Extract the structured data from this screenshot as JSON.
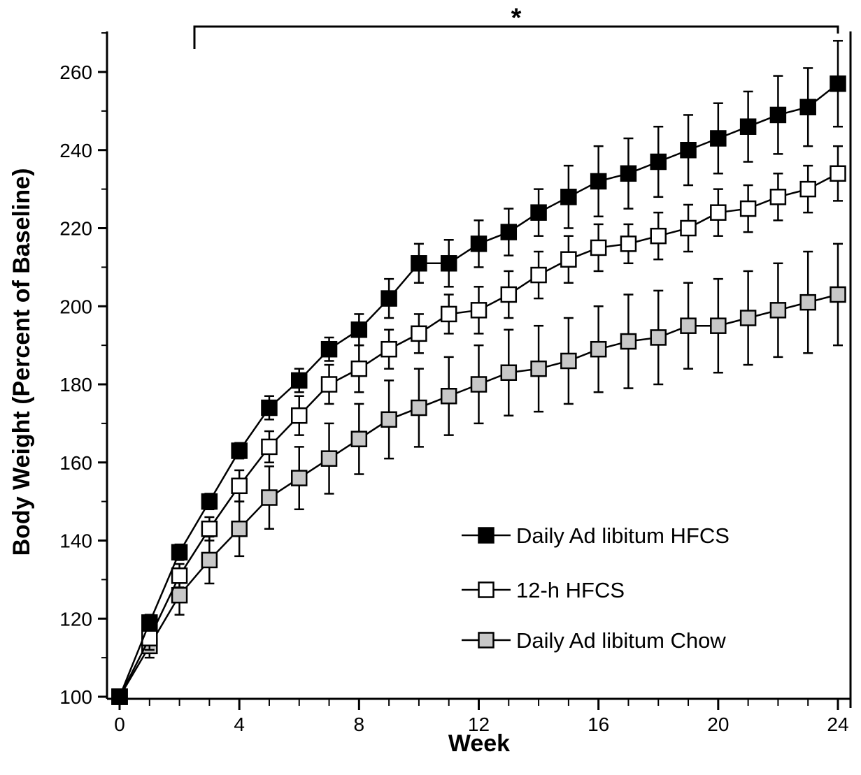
{
  "chart_data": {
    "type": "line",
    "xlabel": "Week",
    "ylabel": "Body Weight (Percent of Baseline)",
    "xlim": [
      0,
      24
    ],
    "ylim": [
      100,
      270
    ],
    "x_ticks": [
      0,
      4,
      8,
      12,
      16,
      20,
      24
    ],
    "y_ticks": [
      100,
      120,
      140,
      160,
      180,
      200,
      220,
      240,
      260
    ],
    "x": [
      0,
      1,
      2,
      3,
      4,
      5,
      6,
      7,
      8,
      9,
      10,
      11,
      12,
      13,
      14,
      15,
      16,
      17,
      18,
      19,
      20,
      21,
      22,
      23,
      24
    ],
    "grid": false,
    "legend_position": "bottom-right",
    "significance": {
      "label": "*",
      "from_week": 2.5,
      "to_week": 24
    },
    "series": [
      {
        "name": "Daily Ad libitum HFCS",
        "marker": "filled-square",
        "marker_color": "#000000",
        "values": [
          100,
          119,
          137,
          150,
          163,
          174,
          181,
          189,
          194,
          202,
          211,
          211,
          216,
          219,
          224,
          228,
          232,
          234,
          237,
          240,
          243,
          246,
          249,
          251,
          257
        ],
        "error": [
          0,
          2,
          2,
          2,
          2,
          3,
          3,
          3,
          4,
          5,
          5,
          6,
          6,
          6,
          6,
          8,
          9,
          9,
          9,
          9,
          9,
          9,
          10,
          10,
          11
        ]
      },
      {
        "name": "12-h HFCS",
        "marker": "open-square",
        "marker_color": "#ffffff",
        "values": [
          100,
          115,
          131,
          143,
          154,
          164,
          172,
          180,
          184,
          189,
          193,
          198,
          199,
          203,
          208,
          212,
          215,
          216,
          218,
          220,
          224,
          225,
          228,
          230,
          234
        ],
        "error": [
          0,
          3,
          3,
          3,
          4,
          4,
          5,
          5,
          6,
          5,
          5,
          5,
          6,
          6,
          6,
          6,
          6,
          5,
          6,
          6,
          6,
          6,
          6,
          6,
          7
        ]
      },
      {
        "name": "Daily Ad libitum Chow",
        "marker": "gray-square",
        "marker_color": "#c8c8c8",
        "values": [
          100,
          113,
          126,
          135,
          143,
          151,
          156,
          161,
          166,
          171,
          174,
          177,
          180,
          183,
          184,
          186,
          189,
          191,
          192,
          195,
          195,
          197,
          199,
          201,
          203
        ],
        "error": [
          0,
          3,
          5,
          6,
          7,
          8,
          8,
          9,
          9,
          10,
          10,
          10,
          10,
          11,
          11,
          11,
          11,
          12,
          12,
          11,
          12,
          12,
          12,
          13,
          13
        ]
      }
    ]
  }
}
